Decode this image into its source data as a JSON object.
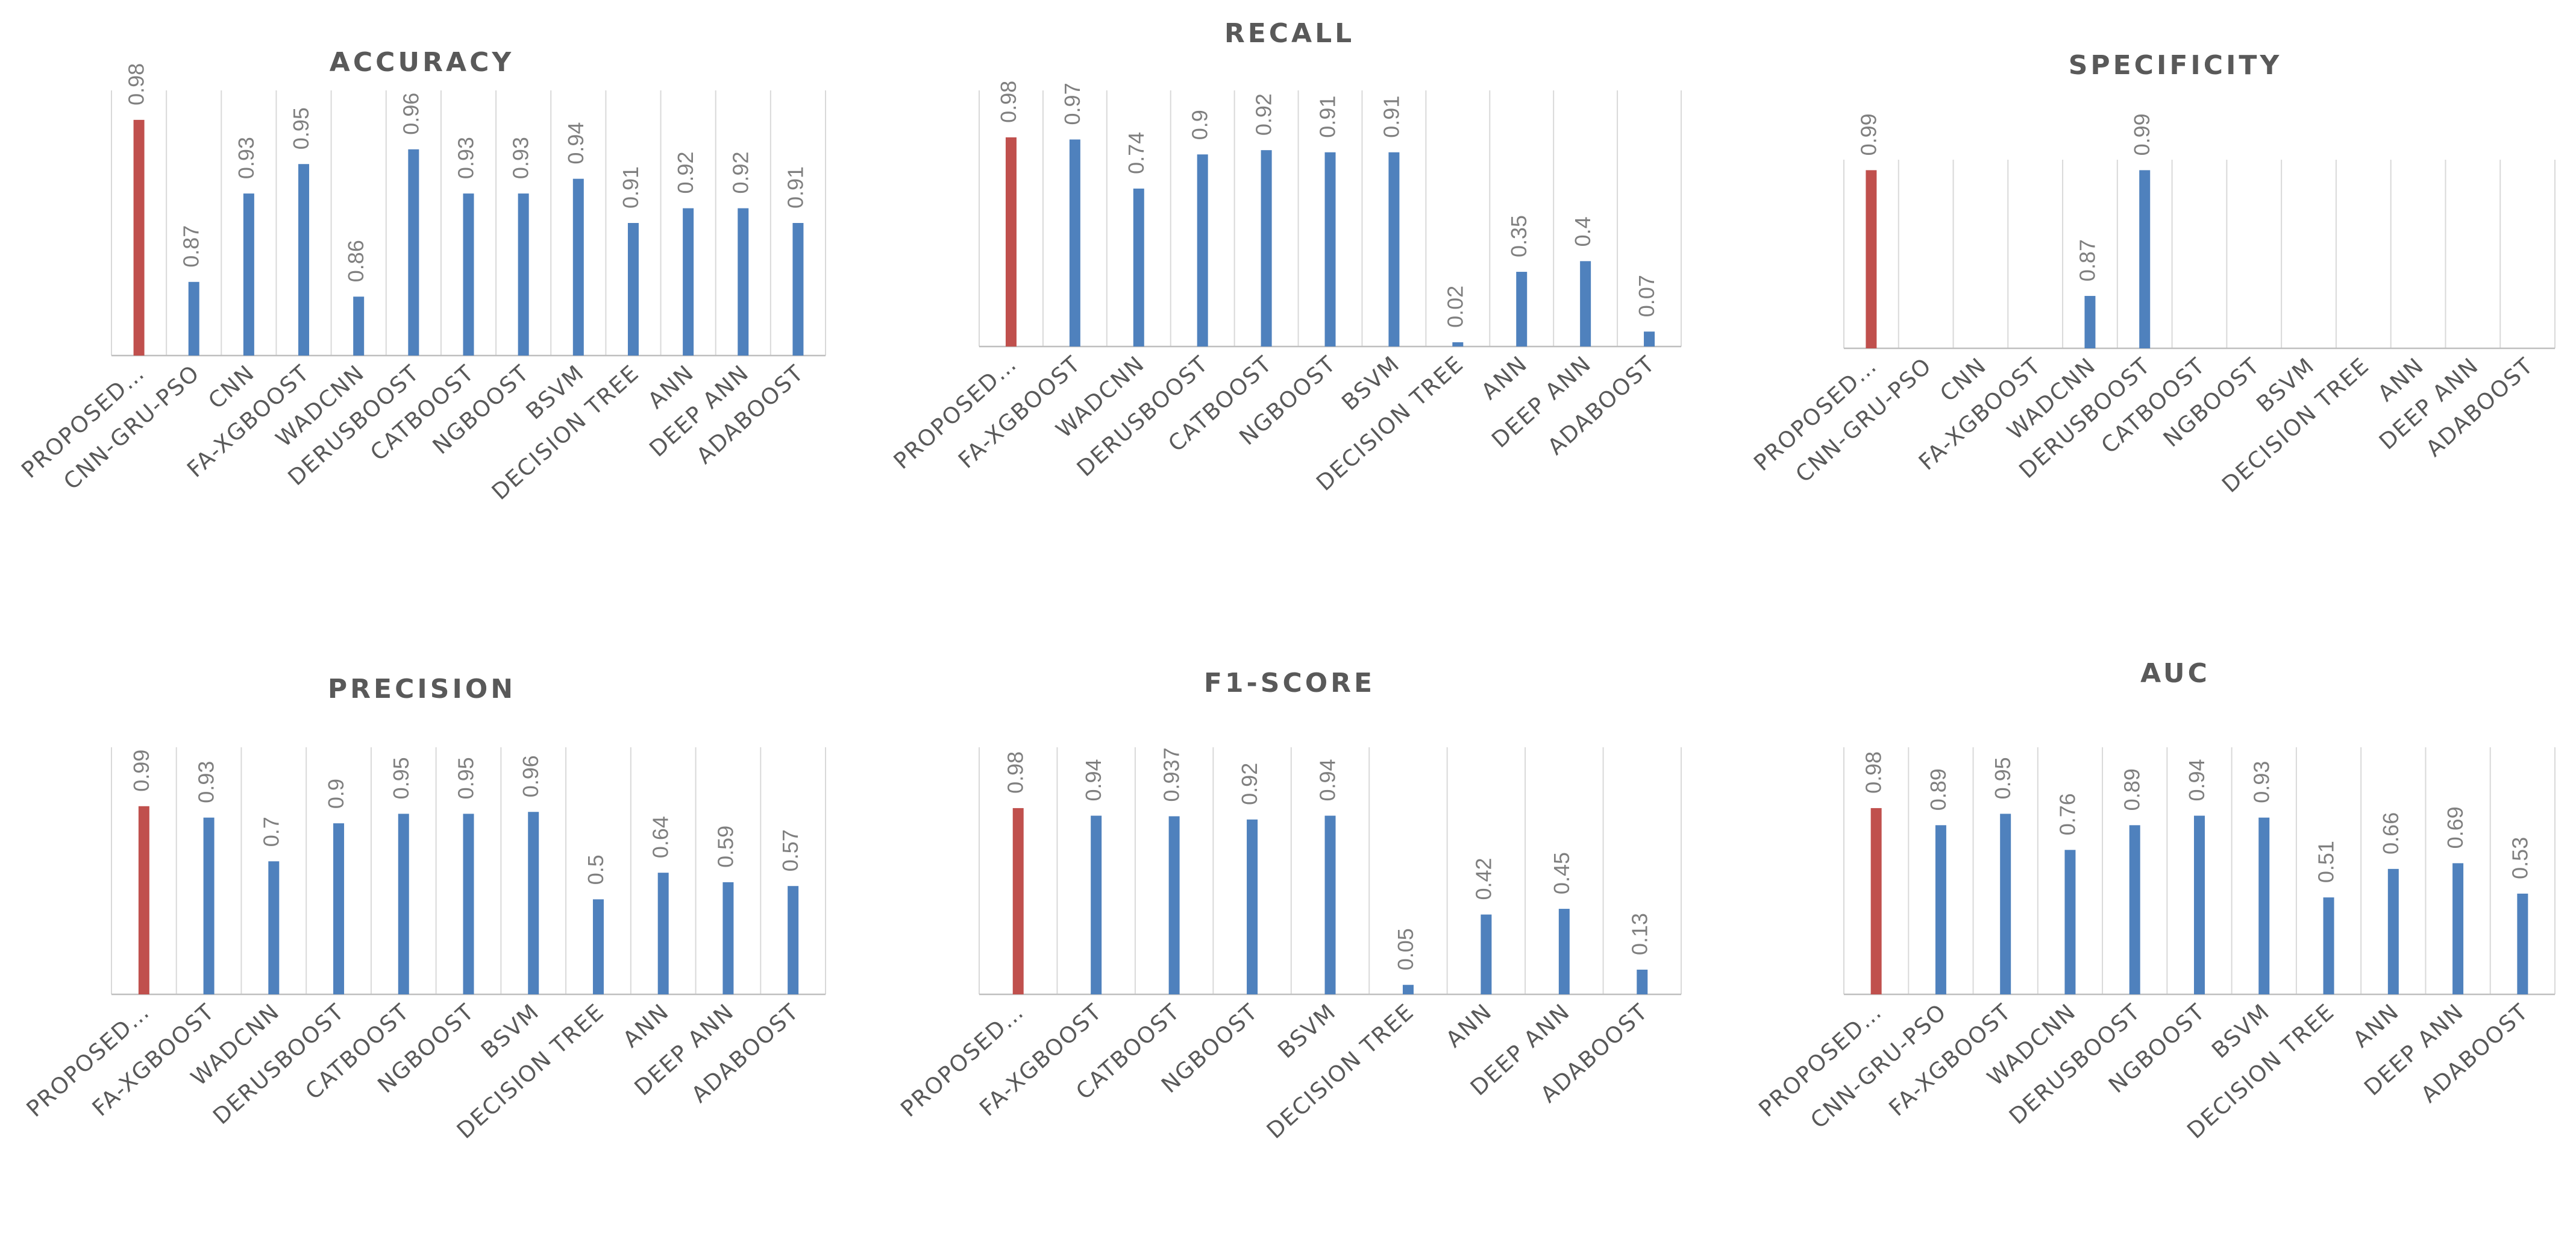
{
  "colors": {
    "highlight": "#c0504d",
    "bar": "#4f81bd"
  },
  "chart_data": [
    {
      "type": "bar",
      "title": "ACCURACY",
      "categories": [
        "PROPOSED…",
        "CNN-GRU-PSO",
        "CNN",
        "FA-XGBOOST",
        "WADCNN",
        "DERUSBOOST",
        "CATBOOST",
        "NGBOOST",
        "BSVM",
        "DECISION TREE",
        "ANN",
        "DEEP ANN",
        "ADABOOST"
      ],
      "values": [
        0.98,
        0.87,
        0.93,
        0.95,
        0.86,
        0.96,
        0.93,
        0.93,
        0.94,
        0.91,
        0.92,
        0.92,
        0.91
      ],
      "labels": [
        "0.98",
        "0.87",
        "0.93",
        "0.95",
        "0.86",
        "0.96",
        "0.93",
        "0.93",
        "0.94",
        "0.91",
        "0.92",
        "0.92",
        "0.91"
      ],
      "ylim": [
        0.82,
        1.0
      ],
      "grid": "vertical"
    },
    {
      "type": "bar",
      "title": "RECALL",
      "categories": [
        "PROPOSED…",
        "FA-XGBOOST",
        "WADCNN",
        "DERUSBOOST",
        "CATBOOST",
        "NGBOOST",
        "BSVM",
        "DECISION TREE",
        "ANN",
        "DEEP ANN",
        "ADABOOST"
      ],
      "values": [
        0.98,
        0.97,
        0.74,
        0.9,
        0.92,
        0.91,
        0.91,
        0.02,
        0.35,
        0.4,
        0.07
      ],
      "labels": [
        "0.98",
        "0.97",
        "0.74",
        "0.9",
        "0.92",
        "0.91",
        "0.91",
        "0.02",
        "0.35",
        "0.4",
        "0.07"
      ],
      "ylim": [
        0,
        1.2
      ],
      "grid": "vertical"
    },
    {
      "type": "bar",
      "title": "SPECIFICITY",
      "categories": [
        "PROPOSED…",
        "CNN-GRU-PSO",
        "CNN",
        "FA-XGBOOST",
        "WADCNN",
        "DERUSBOOST",
        "CATBOOST",
        "NGBOOST",
        "BSVM",
        "DECISION TREE",
        "ANN",
        "DEEP ANN",
        "ADABOOST"
      ],
      "values": [
        0.99,
        null,
        null,
        null,
        0.87,
        0.99,
        null,
        null,
        null,
        null,
        null,
        null,
        null
      ],
      "labels": [
        "0.99",
        "",
        "",
        "",
        "0.87",
        "0.99",
        "",
        "",
        "",
        "",
        "",
        "",
        ""
      ],
      "ylim": [
        0.82,
        1.0
      ],
      "grid": "vertical"
    },
    {
      "type": "bar",
      "title": "PRECISION",
      "categories": [
        "PROPOSED…",
        "FA-XGBOOST",
        "WADCNN",
        "DERUSBOOST",
        "CATBOOST",
        "NGBOOST",
        "BSVM",
        "DECISION TREE",
        "ANN",
        "DEEP ANN",
        "ADABOOST"
      ],
      "values": [
        0.99,
        0.93,
        0.7,
        0.9,
        0.95,
        0.95,
        0.96,
        0.5,
        0.64,
        0.59,
        0.57
      ],
      "labels": [
        "0.99",
        "0.93",
        "0.7",
        "0.9",
        "0.95",
        "0.95",
        "0.96",
        "0.5",
        "0.64",
        "0.59",
        "0.57"
      ],
      "ylim": [
        0,
        1.3
      ],
      "grid": "vertical"
    },
    {
      "type": "bar",
      "title": "F1-SCORE",
      "categories": [
        "PROPOSED…",
        "FA-XGBOOST",
        "CATBOOST",
        "NGBOOST",
        "BSVM",
        "DECISION TREE",
        "ANN",
        "DEEP ANN",
        "ADABOOST"
      ],
      "values": [
        0.98,
        0.94,
        0.937,
        0.92,
        0.94,
        0.05,
        0.42,
        0.45,
        0.13
      ],
      "labels": [
        "0.98",
        "0.94",
        "0.937",
        "0.92",
        "0.94",
        "0.05",
        "0.42",
        "0.45",
        "0.13"
      ],
      "ylim": [
        0,
        1.3
      ],
      "grid": "vertical"
    },
    {
      "type": "bar",
      "title": "AUC",
      "categories": [
        "PROPOSED…",
        "CNN-GRU-PSO",
        "FA-XGBOOST",
        "WADCNN",
        "DERUSBOOST",
        "NGBOOST",
        "BSVM",
        "DECISION TREE",
        "ANN",
        "DEEP ANN",
        "ADABOOST"
      ],
      "values": [
        0.98,
        0.89,
        0.95,
        0.76,
        0.89,
        0.94,
        0.93,
        0.51,
        0.66,
        0.69,
        0.53
      ],
      "labels": [
        "0.98",
        "0.89",
        "0.95",
        "0.76",
        "0.89",
        "0.94",
        "0.93",
        "0.51",
        "0.66",
        "0.69",
        "0.53"
      ],
      "ylim": [
        0,
        1.3
      ],
      "grid": "vertical"
    }
  ]
}
